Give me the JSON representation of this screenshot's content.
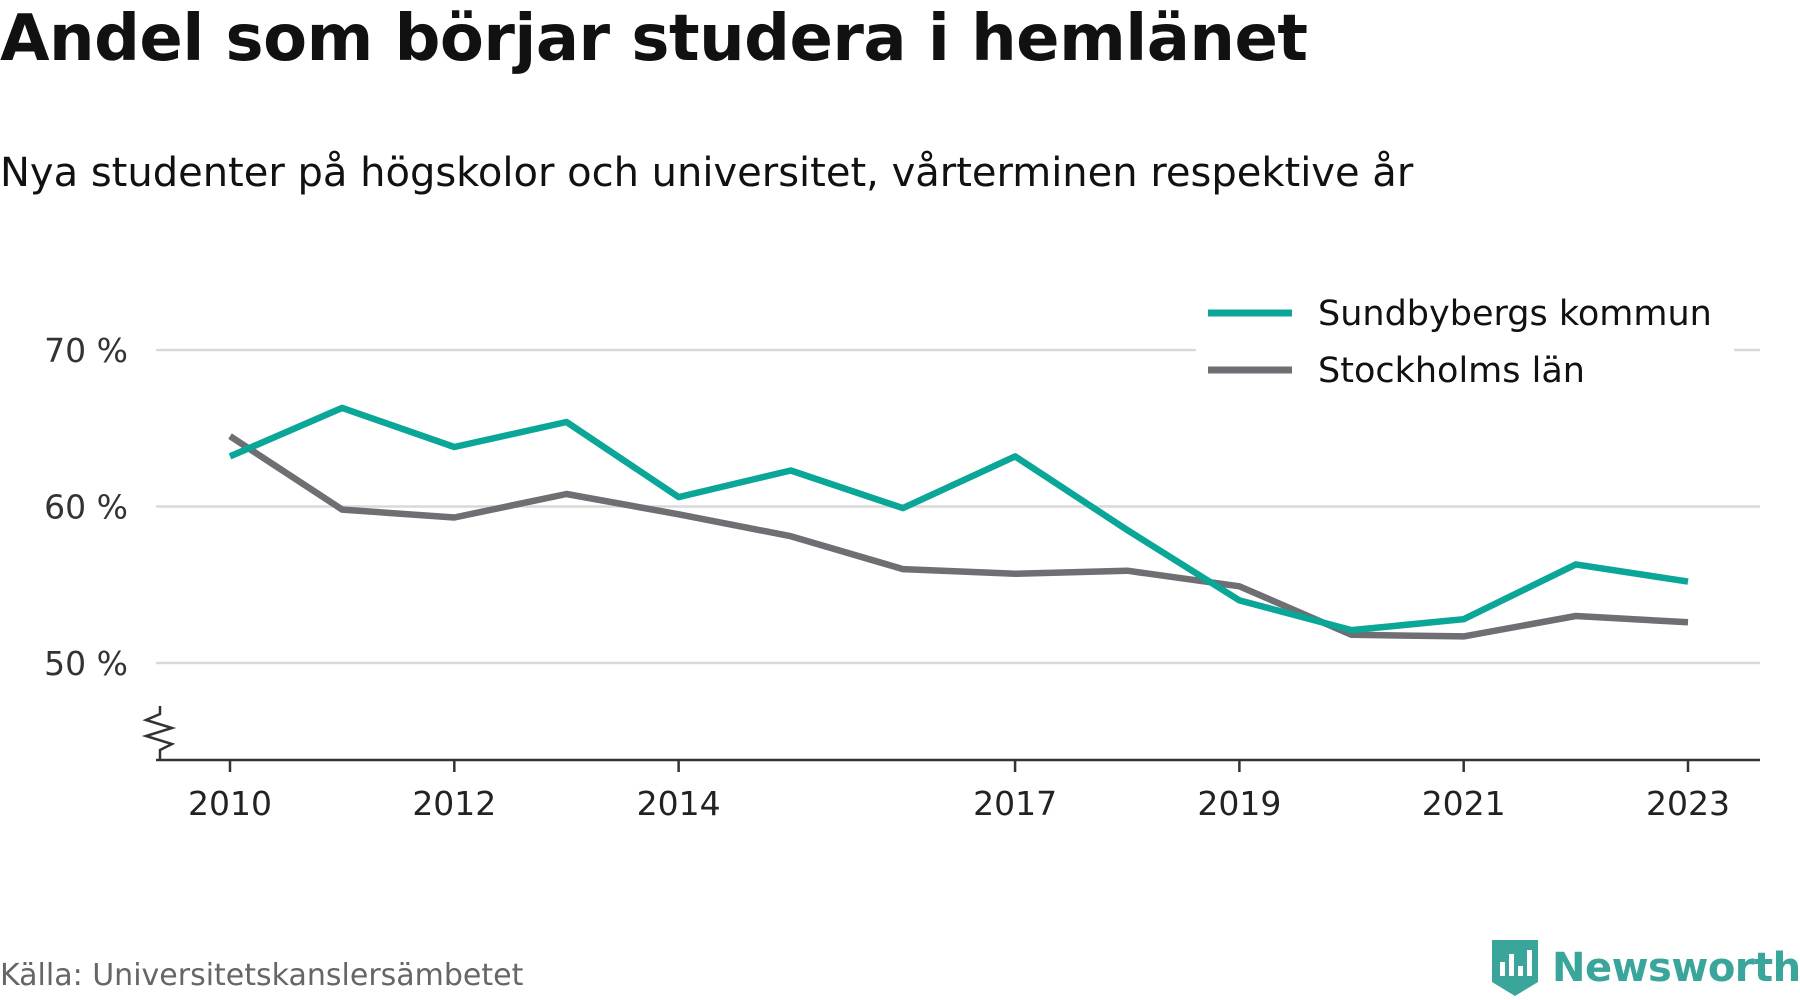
{
  "header": {
    "title": "Andel som börjar studera i hemlänet",
    "subtitle": "Nya studenter på högskolor och universitet, vårterminen respektive år"
  },
  "footer": {
    "source": "Källa: Universitetskanslersämbetet",
    "brand": "Newsworthy"
  },
  "colors": {
    "sundbyberg": "#0aa697",
    "stockholm": "#6e6e73",
    "grid": "#d9d9d9",
    "axis": "#333333",
    "brand": "#3aa59a"
  },
  "chart_data": {
    "type": "line",
    "x": [
      2010,
      2011,
      2012,
      2013,
      2014,
      2015,
      2016,
      2017,
      2018,
      2019,
      2020,
      2021,
      2022,
      2023
    ],
    "xticks": [
      2010,
      2012,
      2014,
      2017,
      2019,
      2021,
      2023
    ],
    "yticks": [
      50,
      60,
      70
    ],
    "ytick_labels": [
      "50 %",
      "60 %",
      "70 %"
    ],
    "ylim": [
      44,
      71
    ],
    "grid": true,
    "y_axis_break": true,
    "legend_position": "top-right",
    "series": [
      {
        "name": "Sundbybergs kommun",
        "color": "#0aa697",
        "values": [
          63.2,
          66.3,
          63.8,
          65.4,
          60.6,
          62.3,
          59.9,
          63.2,
          58.5,
          54.0,
          52.1,
          52.8,
          56.3,
          55.2
        ]
      },
      {
        "name": "Stockholms län",
        "color": "#6e6e73",
        "values": [
          64.5,
          59.8,
          59.3,
          60.8,
          59.5,
          58.1,
          56.0,
          55.7,
          55.9,
          54.9,
          51.8,
          51.7,
          53.0,
          52.6
        ]
      }
    ]
  }
}
